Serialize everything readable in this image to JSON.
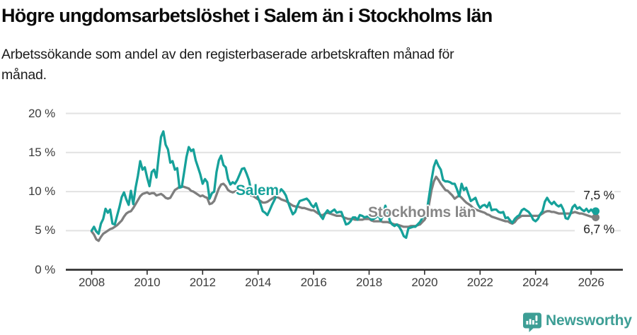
{
  "page": {
    "title": "Högre ungdomsarbetslöshet i Salem än i Stockholms län",
    "subtitle_lines": [
      "Arbetssökande som andel av den registerbaserade arbetskraften månad för",
      "månad."
    ]
  },
  "chart_data": {
    "type": "line",
    "title": "Högre ungdomsarbetslöshet i Salem än i Stockholms län",
    "subtitle": "Arbetssökande som andel av den registerbaserade arbetskraften månad för månad.",
    "unit": "%",
    "ylim": [
      0,
      20
    ],
    "xlim": [
      2008,
      2026.25
    ],
    "grid": "horizontal",
    "legend_position": "inline-annotations",
    "y_ticks": [
      {
        "v": 0,
        "label": "0 %"
      },
      {
        "v": 5,
        "label": "5 %"
      },
      {
        "v": 10,
        "label": "10 %"
      },
      {
        "v": 15,
        "label": "15 %"
      },
      {
        "v": 20,
        "label": "20 %"
      }
    ],
    "x_ticks": [
      {
        "v": 2008,
        "label": "2008"
      },
      {
        "v": 2010,
        "label": "2010"
      },
      {
        "v": 2012,
        "label": "2012"
      },
      {
        "v": 2014,
        "label": "2014"
      },
      {
        "v": 2016,
        "label": "2016"
      },
      {
        "v": 2018,
        "label": "2018"
      },
      {
        "v": 2020,
        "label": "2020"
      },
      {
        "v": 2022,
        "label": "2022"
      },
      {
        "v": 2024,
        "label": "2024"
      },
      {
        "v": 2026,
        "label": "2026"
      }
    ],
    "x_start_year": 2008,
    "points_per_year": 12,
    "series": [
      {
        "name": "Salem",
        "color": "#16a19a",
        "end_label": "7,5 %",
        "end_value": 7.5,
        "values": [
          5.0,
          5.5,
          4.9,
          4.6,
          5.9,
          6.5,
          7.8,
          7.3,
          7.7,
          5.9,
          5.8,
          6.9,
          8.0,
          9.3,
          9.9,
          9.0,
          8.3,
          10.1,
          8.4,
          10.5,
          12.0,
          13.9,
          12.8,
          13.1,
          11.8,
          10.7,
          12.5,
          12.8,
          11.8,
          14.5,
          17.0,
          17.7,
          16.0,
          15.4,
          13.7,
          13.9,
          12.8,
          13.0,
          10.5,
          10.6,
          12.5,
          14.4,
          15.7,
          15.2,
          15.4,
          14.0,
          13.1,
          12.2,
          11.0,
          11.6,
          11.2,
          9.1,
          9.8,
          10.0,
          12.5,
          14.0,
          14.6,
          13.4,
          13.1,
          11.6,
          10.9,
          11.2,
          11.0,
          11.5,
          12.2,
          12.9,
          13.0,
          12.3,
          11.5,
          10.1,
          10.4,
          9.8,
          9.2,
          8.4,
          7.5,
          7.3,
          7.0,
          7.6,
          8.3,
          8.9,
          9.5,
          9.9,
          10.3,
          10.0,
          9.5,
          8.6,
          7.8,
          7.1,
          7.4,
          8.2,
          8.8,
          8.9,
          9.0,
          9.1,
          8.8,
          8.3,
          8.0,
          8.5,
          7.6,
          6.9,
          6.5,
          7.2,
          7.6,
          7.3,
          7.5,
          7.7,
          7.3,
          7.4,
          7.4,
          6.6,
          5.8,
          5.9,
          6.2,
          6.7,
          6.7,
          6.4,
          7.0,
          6.9,
          6.7,
          6.8,
          6.8,
          6.4,
          6.5,
          6.7,
          7.0,
          6.3,
          6.9,
          8.2,
          7.4,
          6.2,
          5.8,
          5.6,
          5.8,
          5.5,
          5.0,
          4.3,
          4.1,
          5.3,
          5.4,
          5.5,
          5.5,
          5.8,
          6.1,
          6.6,
          6.9,
          7.6,
          9.5,
          11.5,
          13.2,
          14.0,
          13.3,
          12.8,
          11.5,
          11.3,
          11.3,
          11.2,
          11.0,
          11.0,
          10.3,
          9.4,
          11.0,
          10.2,
          10.5,
          9.6,
          8.8,
          9.0,
          9.2,
          8.4,
          7.9,
          8.2,
          8.3,
          8.0,
          8.6,
          7.6,
          7.7,
          7.7,
          7.4,
          7.3,
          7.4,
          6.6,
          6.7,
          6.3,
          6.0,
          6.5,
          6.8,
          7.0,
          7.6,
          7.8,
          7.6,
          7.4,
          7.0,
          6.4,
          6.2,
          6.5,
          7.1,
          7.5,
          8.7,
          9.2,
          8.7,
          8.4,
          8.7,
          8.3,
          8.1,
          8.3,
          7.7,
          6.6,
          6.5,
          7.1,
          8.0,
          8.3,
          7.8,
          8.0,
          7.7,
          7.5,
          7.8,
          7.4,
          7.7,
          7.4,
          7.5
        ]
      },
      {
        "name": "Stockholms län",
        "color": "#7e7e7e",
        "end_label": "6,7 %",
        "end_value": 6.7,
        "values": [
          4.9,
          4.5,
          3.9,
          3.7,
          4.2,
          4.6,
          4.8,
          5.0,
          5.2,
          5.3,
          5.5,
          5.7,
          6.0,
          6.3,
          6.8,
          7.2,
          7.4,
          7.5,
          7.9,
          8.4,
          8.9,
          9.4,
          9.7,
          9.8,
          9.9,
          9.7,
          9.8,
          9.8,
          9.5,
          9.6,
          9.7,
          9.5,
          9.2,
          9.1,
          9.2,
          9.7,
          10.2,
          10.4,
          10.6,
          10.7,
          10.6,
          10.5,
          10.4,
          10.1,
          10.0,
          9.8,
          9.6,
          9.4,
          9.5,
          9.3,
          9.2,
          8.4,
          8.5,
          8.8,
          9.6,
          10.4,
          10.9,
          11.0,
          10.7,
          10.2,
          10.0,
          9.9,
          10.0,
          10.1,
          10.2,
          10.3,
          10.4,
          10.1,
          9.7,
          9.5,
          9.4,
          9.2,
          9.0,
          8.8,
          8.6,
          8.6,
          8.7,
          8.9,
          9.1,
          9.3,
          9.3,
          9.2,
          9.0,
          8.9,
          8.8,
          8.6,
          8.4,
          8.2,
          8.1,
          8.1,
          8.0,
          7.9,
          7.9,
          7.8,
          7.7,
          7.6,
          7.6,
          7.4,
          7.2,
          7.0,
          7.0,
          7.2,
          7.3,
          7.2,
          7.1,
          7.0,
          6.9,
          6.9,
          6.9,
          6.7,
          6.6,
          6.5,
          6.5,
          6.5,
          6.4,
          6.4,
          6.4,
          6.4,
          6.5,
          6.5,
          6.5,
          6.3,
          6.2,
          6.2,
          6.2,
          6.2,
          6.1,
          6.1,
          6.1,
          6.0,
          5.9,
          5.8,
          5.8,
          5.7,
          5.6,
          5.5,
          5.5,
          5.5,
          5.6,
          5.6,
          5.6,
          5.7,
          5.8,
          6.1,
          6.4,
          7.0,
          8.5,
          10.2,
          11.3,
          11.9,
          11.5,
          11.0,
          10.6,
          10.2,
          10.1,
          9.8,
          9.5,
          9.1,
          9.3,
          9.5,
          9.2,
          8.9,
          8.6,
          8.4,
          8.2,
          7.9,
          7.7,
          7.6,
          7.5,
          7.4,
          7.3,
          7.1,
          7.0,
          6.8,
          6.7,
          6.6,
          6.5,
          6.4,
          6.3,
          6.2,
          6.2,
          6.0,
          5.9,
          6.1,
          6.5,
          6.7,
          6.9,
          6.9,
          6.9,
          6.9,
          6.9,
          6.9,
          6.9,
          6.9,
          7.0,
          7.2,
          7.4,
          7.5,
          7.5,
          7.4,
          7.4,
          7.3,
          7.2,
          7.2,
          7.2,
          7.2,
          7.2,
          7.2,
          7.3,
          7.4,
          7.3,
          7.2,
          7.2,
          7.1,
          7.0,
          6.9,
          6.8,
          6.7,
          6.7
        ]
      }
    ]
  },
  "footer": {
    "brand": "Newsworthy"
  },
  "colors": {
    "salem_teal": "#16a19a",
    "stockholm_gray": "#7e7e7e",
    "brand_teal": "#3d9e95",
    "gridline": "#e2e2e2",
    "axis": "#2b2b2b"
  }
}
